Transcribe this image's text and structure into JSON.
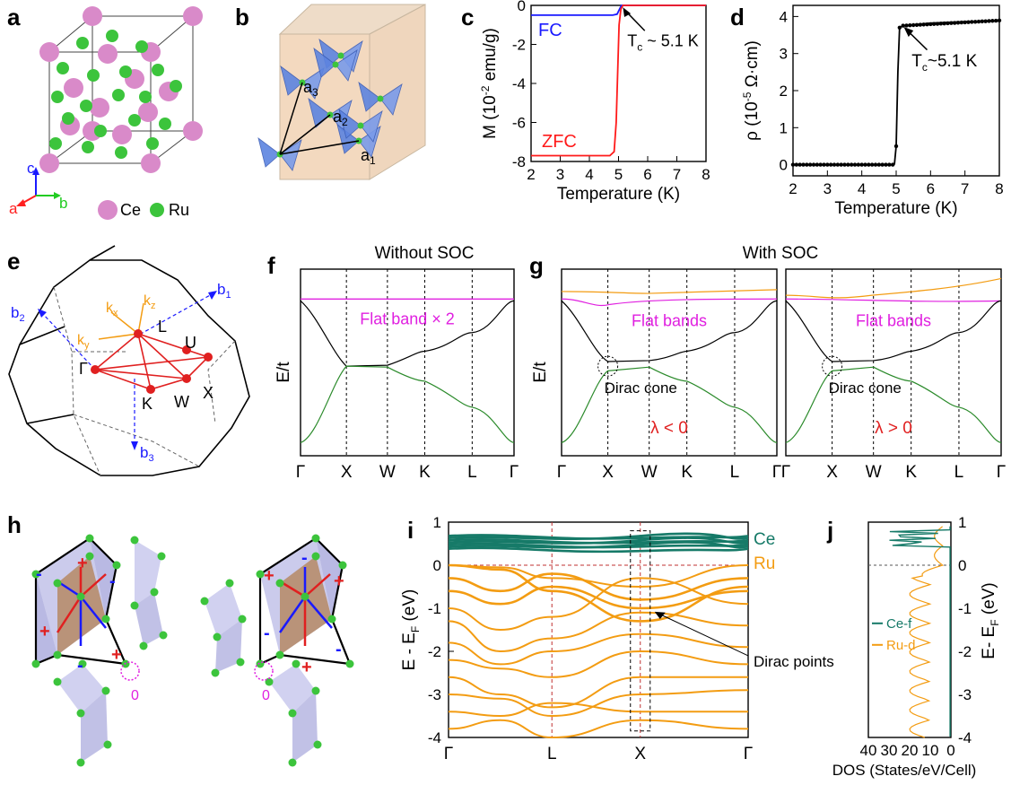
{
  "panels": {
    "a": {
      "letter": "a",
      "legend": [
        "Ce",
        "Ru"
      ],
      "axes": [
        "c",
        "a",
        "b"
      ],
      "colors": {
        "ce": "#d98ac9",
        "ru": "#3cc43c"
      }
    },
    "b": {
      "letter": "b",
      "vectors": [
        {
          "base": "a",
          "sub": "3"
        },
        {
          "base": "a",
          "sub": "2"
        },
        {
          "base": "a",
          "sub": "1"
        }
      ]
    },
    "e": {
      "letter": "e",
      "reciprocal": [
        {
          "base": "b",
          "sub": "1"
        },
        {
          "base": "b",
          "sub": "2"
        },
        {
          "base": "b",
          "sub": "3"
        }
      ],
      "kaxes": [
        {
          "base": "k",
          "sub": "x"
        },
        {
          "base": "k",
          "sub": "y"
        },
        {
          "base": "k",
          "sub": "z"
        }
      ],
      "points": [
        "L",
        "U",
        "Γ",
        "K",
        "W",
        "X"
      ]
    },
    "f": {
      "letter": "f",
      "title": "Without SOC",
      "ylabel": "E/t",
      "annotation": "Flat band × 2"
    },
    "g": {
      "letter": "g",
      "title": "With SOC",
      "ylabel": "E/t",
      "annotation": "Flat bands",
      "dirac": "Dirac cone",
      "lambda_left": "λ < 0",
      "lambda_right": "λ > 0"
    },
    "h": {
      "letter": "h",
      "plus": "+",
      "minus": "-",
      "zero": "0"
    },
    "i": {
      "letter": "i",
      "ce_label": "Ce",
      "ru_label": "Ru",
      "dirac_points": "Dirac points"
    },
    "j": {
      "letter": "j",
      "ylabel_main": "E- E",
      "ylabel_sub": "F",
      "ylabel_unit": "(eV)",
      "xlabel": "DOS (States/eV/Cell)",
      "legend": [
        "Ce-f",
        "Ru-d"
      ]
    }
  },
  "chart_data": [
    {
      "panel": "c",
      "type": "line",
      "letter": "c",
      "xlabel": "Temperature (K)",
      "ylabel": "M (10-2 emu/g)",
      "ylabel_parts": {
        "main": "M (10",
        "sup": "-2",
        "unit": " emu/g)"
      },
      "xlim": [
        2,
        8
      ],
      "ylim": [
        -8,
        0
      ],
      "xticks": [
        2,
        3,
        4,
        5,
        6,
        7,
        8
      ],
      "yticks": [
        0,
        -2,
        -4,
        -6,
        -8
      ],
      "annotation": {
        "main": "T",
        "sub": "c",
        "rest": " ~ 5.1 K"
      },
      "series": [
        {
          "name": "FC",
          "color": "#1a1aff",
          "x": [
            2,
            4.8,
            4.95,
            5.05,
            5.1,
            5.2,
            8
          ],
          "y": [
            -0.5,
            -0.5,
            -0.45,
            -0.15,
            0,
            0,
            0
          ]
        },
        {
          "name": "ZFC",
          "color": "#ff1a1a",
          "x": [
            2,
            4.7,
            4.85,
            4.92,
            4.97,
            5.02,
            5.08,
            5.15,
            8
          ],
          "y": [
            -7.7,
            -7.7,
            -7.5,
            -6.0,
            -3.5,
            -1.0,
            -0.2,
            0,
            0
          ]
        }
      ]
    },
    {
      "panel": "d",
      "type": "line",
      "letter": "d",
      "xlabel": "Temperature (K)",
      "ylabel": "ρ (10-5 Ω·cm)",
      "ylabel_parts": {
        "main": "ρ (10",
        "sup": "-5",
        "unit": " Ω·cm)"
      },
      "xlim": [
        2,
        8
      ],
      "ylim": [
        -0.3,
        4.3
      ],
      "xticks": [
        2,
        3,
        4,
        5,
        6,
        7,
        8
      ],
      "yticks": [
        0,
        1,
        2,
        3,
        4
      ],
      "annotation": {
        "main": "T",
        "sub": "c",
        "rest": "~5.1 K"
      },
      "series": [
        {
          "name": "",
          "color": "#000000",
          "x": [
            2,
            4.9,
            4.95,
            5.0,
            5.05,
            5.1,
            5.2,
            6,
            7,
            8
          ],
          "y": [
            0,
            0,
            0.02,
            0.5,
            2.5,
            3.7,
            3.75,
            3.82,
            3.86,
            3.88
          ]
        }
      ]
    }
  ]
}
